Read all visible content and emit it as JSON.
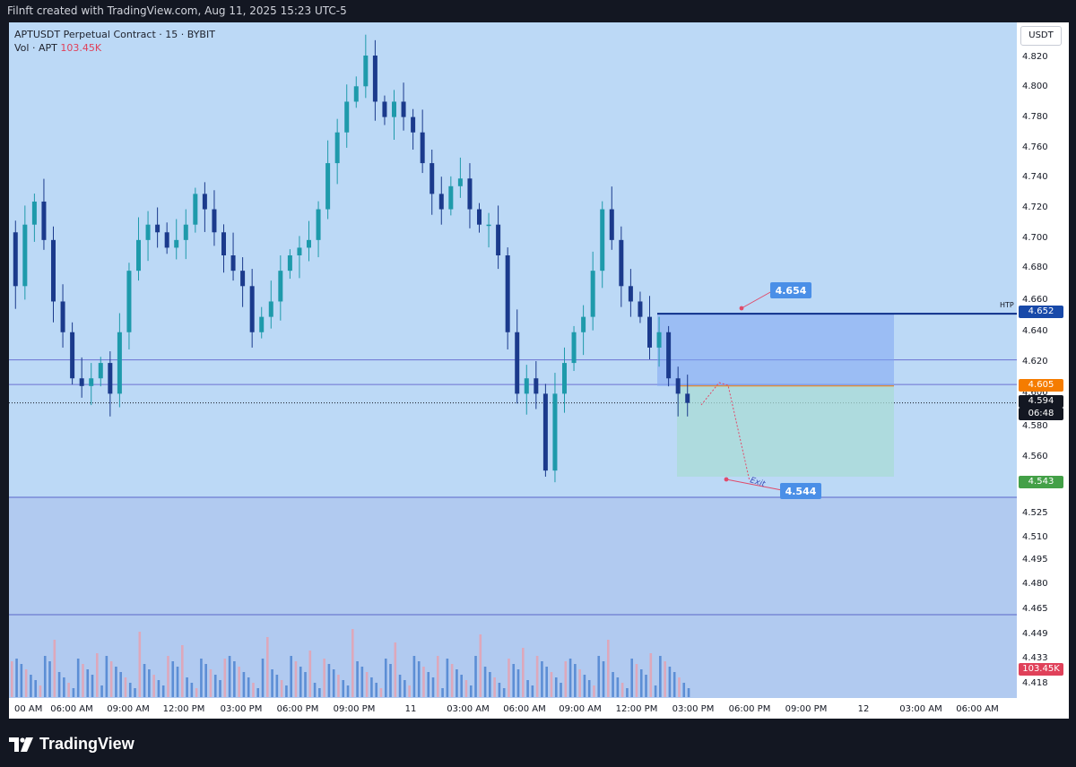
{
  "header": {
    "title": "Filnft created with TradingView.com, Aug 11, 2025 15:23 UTC-5"
  },
  "legend": {
    "symbol_line": "APTUSDT Perpetual Contract · 15 · BYBIT",
    "vol_label": "Vol · APT",
    "vol_value": "103.45K"
  },
  "price_axis": {
    "currency_button": "USDT",
    "ticks": [
      "4.820",
      "4.800",
      "4.780",
      "4.760",
      "4.740",
      "4.720",
      "4.700",
      "4.680",
      "4.660",
      "4.640",
      "4.620",
      "4.600",
      "4.580",
      "4.560",
      "4.525",
      "4.510",
      "4.495",
      "4.480",
      "4.465",
      "4.449",
      "4.433",
      "4.418"
    ],
    "labels": {
      "htp": "4.652",
      "entry": "4.605",
      "current": "4.594",
      "countdown": "06:48",
      "stop": "4.543",
      "volume": "103.45K"
    }
  },
  "time_axis": {
    "ticks": [
      "00 AM",
      "06:00 AM",
      "09:00 AM",
      "12:00 PM",
      "03:00 PM",
      "06:00 PM",
      "09:00 PM",
      "11",
      "03:00 AM",
      "06:00 AM",
      "09:00 AM",
      "12:00 PM",
      "03:00 PM",
      "06:00 PM",
      "09:00 PM",
      "12",
      "03:00 AM",
      "06:00 AM"
    ]
  },
  "annotations": {
    "htp_text": "HTP",
    "callout_top": "4.654",
    "callout_bottom": "4.544",
    "exit_text": "Exit"
  },
  "footer": {
    "brand": "TradingView"
  },
  "colors": {
    "plot_bg": "#bcd9f6",
    "candle_up": "#1e9aab",
    "candle_down": "#1b3a8c",
    "vol_up": "#4e84d0",
    "vol_down": "#e5a2b2",
    "htp_line": "#0d2f8a",
    "entry_label": "#f57c00",
    "stop_label": "#43a047",
    "callout": "#4a8fe7"
  },
  "chart_data": {
    "type": "candlestick",
    "symbol": "APTUSDT",
    "interval": "15",
    "exchange": "BYBIT",
    "ylim": [
      4.41,
      4.835
    ],
    "series_close_approx": [
      4.67,
      4.71,
      4.725,
      4.7,
      4.66,
      4.64,
      4.61,
      4.605,
      4.61,
      4.62,
      4.6,
      4.64,
      4.68,
      4.7,
      4.71,
      4.705,
      4.695,
      4.7,
      4.71,
      4.73,
      4.72,
      4.705,
      4.69,
      4.68,
      4.67,
      4.64,
      4.65,
      4.66,
      4.68,
      4.69,
      4.695,
      4.7,
      4.72,
      4.75,
      4.77,
      4.79,
      4.8,
      4.82,
      4.79,
      4.78,
      4.79,
      4.78,
      4.77,
      4.75,
      4.73,
      4.72,
      4.735,
      4.74,
      4.72,
      4.71,
      4.71,
      4.69,
      4.64,
      4.6,
      4.61,
      4.6,
      4.55,
      4.6,
      4.62,
      4.64,
      4.65,
      4.68,
      4.72,
      4.7,
      4.67,
      4.66,
      4.65,
      4.63,
      4.64,
      4.61,
      4.6,
      4.594
    ],
    "levels": {
      "htp": 4.652,
      "entry": 4.605,
      "current": 4.594,
      "stop": 4.543,
      "projection_target": 4.544,
      "projection_top": 4.654,
      "zone_upper": 4.622,
      "zone_lower": 4.606
    }
  }
}
